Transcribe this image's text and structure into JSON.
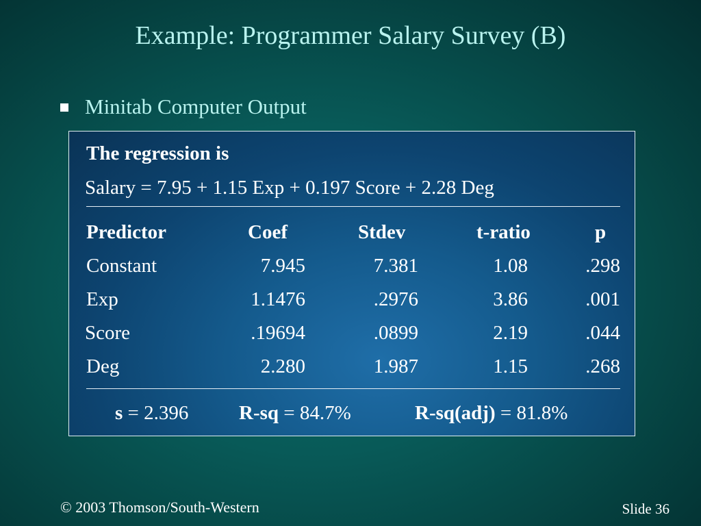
{
  "slide": {
    "title": "Example:  Programmer Salary Survey (B)",
    "bullet": "Minitab Computer Output",
    "footer_left": "© 2003  Thomson/South-Western",
    "footer_right": "Slide 36"
  },
  "output": {
    "heading": "The regression is",
    "equation": "Salary = 7.95 + 1.15 Exp + 0.197 Score + 2.28 Deg",
    "columns": [
      "Predictor",
      "Coef",
      "Stdev",
      "t-ratio",
      "p"
    ],
    "rows": [
      [
        "Constant",
        "7.945",
        "7.381",
        "1.08",
        ".298"
      ],
      [
        "Exp",
        "1.1476",
        ".2976",
        "3.86",
        ".001"
      ],
      [
        "Score",
        ".19694",
        ".0899",
        "2.19",
        ".044"
      ],
      [
        "Deg",
        "2.280",
        "1.987",
        "1.15",
        ".268"
      ]
    ],
    "stats": {
      "s_label": "s",
      "s_value": "= 2.396",
      "rsq_label": "R-sq",
      "rsq_value": "= 84.7%",
      "rsqadj_label": "R-sq(adj)",
      "rsqadj_value": "= 81.8%"
    }
  }
}
